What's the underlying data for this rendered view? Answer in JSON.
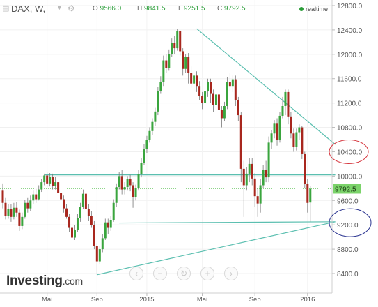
{
  "header": {
    "symbol": "DAX, W,",
    "open_label": "O",
    "open": "9566.0",
    "high_label": "H",
    "high": "9841.5",
    "low_label": "L",
    "low": "9251.5",
    "close_label": "C",
    "close": "9792.5",
    "status": "realtime",
    "icons": [
      "chart-type-icon",
      "interval-dropdown-icon",
      "settings-gear-icon",
      "status-dot-icon"
    ]
  },
  "controls": [
    {
      "name": "scroll-left-button",
      "glyph": "‹"
    },
    {
      "name": "zoom-out-button",
      "glyph": "−"
    },
    {
      "name": "reset-button",
      "glyph": "↻"
    },
    {
      "name": "zoom-in-button",
      "glyph": "+"
    },
    {
      "name": "scroll-right-button",
      "glyph": "›"
    }
  ],
  "logo": {
    "brand": "Investing",
    "suffix": ".com"
  },
  "colors": {
    "up": "#3aa53e",
    "down": "#a8271e",
    "trendline": "#5bbfb0",
    "axis_text": "#555555",
    "price_badge": "#7bd36a"
  },
  "chart_data": {
    "type": "candlestick",
    "title": "DAX, W,",
    "x_ticks": [
      "Mai",
      "Sep",
      "2015",
      "Mai",
      "Sep",
      "2016"
    ],
    "y_ticks": [
      8400,
      8800,
      9200,
      9600,
      10000,
      10400,
      10800,
      11200,
      11600,
      12000,
      12400,
      12800
    ],
    "y_tick_labels": [
      "8400.0",
      "8800.0",
      "9200.0",
      "9600.0",
      "10000.0",
      "10400.0",
      "10800.0",
      "11200.0",
      "11600.0",
      "12000.0",
      "12400.0",
      "12800.0"
    ],
    "ylim": [
      8100,
      12950
    ],
    "last_price": "9792.5",
    "last_price_value": 9792.5,
    "candles": [
      [
        9760,
        9560,
        9880,
        9470
      ],
      [
        9560,
        9350,
        9640,
        9290
      ],
      [
        9350,
        9460,
        9540,
        9300
      ],
      [
        9460,
        9330,
        9540,
        9250
      ],
      [
        9330,
        9480,
        9560,
        9290
      ],
      [
        9480,
        9400,
        9570,
        9330
      ],
      [
        9400,
        9180,
        9450,
        9100
      ],
      [
        9180,
        9330,
        9400,
        9130
      ],
      [
        9330,
        9560,
        9610,
        9300
      ],
      [
        9560,
        9470,
        9640,
        9400
      ],
      [
        9470,
        9600,
        9680,
        9420
      ],
      [
        9600,
        9700,
        9760,
        9540
      ],
      [
        9700,
        9620,
        9790,
        9560
      ],
      [
        9620,
        9780,
        9850,
        9600
      ],
      [
        9780,
        9900,
        9950,
        9740
      ],
      [
        9900,
        10010,
        10040,
        9850
      ],
      [
        10010,
        9880,
        10060,
        9820
      ],
      [
        9880,
        9990,
        10050,
        9830
      ],
      [
        9990,
        9840,
        10040,
        9780
      ],
      [
        9840,
        9900,
        9990,
        9780
      ],
      [
        9900,
        9720,
        9960,
        9650
      ],
      [
        9720,
        9620,
        9790,
        9560
      ],
      [
        9620,
        9470,
        9680,
        9400
      ],
      [
        9470,
        9330,
        9540,
        9300
      ],
      [
        9330,
        9150,
        9380,
        9080
      ],
      [
        9150,
        8990,
        9200,
        8900
      ],
      [
        8990,
        9120,
        9200,
        8950
      ],
      [
        9120,
        9310,
        9380,
        9080
      ],
      [
        9310,
        9500,
        9560,
        9250
      ],
      [
        9500,
        9710,
        9780,
        9460
      ],
      [
        9710,
        9460,
        9760,
        9400
      ],
      [
        9460,
        9350,
        9540,
        9260
      ],
      [
        9350,
        9200,
        9420,
        9150
      ],
      [
        9200,
        8850,
        9260,
        8800
      ],
      [
        8850,
        8600,
        8900,
        8380
      ],
      [
        8600,
        8800,
        8850,
        8550
      ],
      [
        8800,
        8980,
        9050,
        8750
      ],
      [
        8980,
        9240,
        9300,
        8950
      ],
      [
        9240,
        9150,
        9300,
        9050
      ],
      [
        9150,
        9280,
        9350,
        9100
      ],
      [
        9280,
        9560,
        9620,
        9250
      ],
      [
        9560,
        9820,
        9880,
        9500
      ],
      [
        9820,
        10000,
        10070,
        9780
      ],
      [
        10000,
        9780,
        10100,
        9700
      ],
      [
        9780,
        9820,
        9900,
        9700
      ],
      [
        9820,
        9950,
        10000,
        9760
      ],
      [
        9950,
        9850,
        10020,
        9750
      ],
      [
        9850,
        9650,
        9900,
        9480
      ],
      [
        9650,
        9800,
        9860,
        9600
      ],
      [
        9800,
        10030,
        10100,
        9760
      ],
      [
        10030,
        10220,
        10300,
        9980
      ],
      [
        10220,
        10450,
        10520,
        10180
      ],
      [
        10450,
        10600,
        10660,
        10380
      ],
      [
        10600,
        10740,
        10800,
        10550
      ],
      [
        10740,
        10890,
        10950,
        10680
      ],
      [
        10890,
        11060,
        11120,
        10820
      ],
      [
        11060,
        11400,
        11460,
        11000
      ],
      [
        11400,
        11550,
        11640,
        11350
      ],
      [
        11550,
        11900,
        11980,
        11480
      ],
      [
        11900,
        11780,
        12000,
        11700
      ],
      [
        11780,
        12000,
        12080,
        11730
      ],
      [
        12000,
        12190,
        12260,
        11960
      ],
      [
        12190,
        12100,
        12300,
        12000
      ],
      [
        12100,
        12380,
        12420,
        12060
      ],
      [
        12380,
        12050,
        12390,
        11980
      ],
      [
        12050,
        11760,
        12100,
        11650
      ],
      [
        11760,
        11960,
        12000,
        11700
      ],
      [
        11960,
        11700,
        12020,
        11520
      ],
      [
        11700,
        11520,
        11800,
        11450
      ],
      [
        11520,
        11650,
        11700,
        11400
      ],
      [
        11650,
        11480,
        11720,
        11380
      ],
      [
        11480,
        11320,
        11560,
        11250
      ],
      [
        11320,
        11200,
        11380,
        11100
      ],
      [
        11200,
        11390,
        11460,
        11150
      ],
      [
        11390,
        11540,
        11600,
        11300
      ],
      [
        11540,
        11350,
        11600,
        11200
      ],
      [
        11350,
        11170,
        11420,
        11050
      ],
      [
        11170,
        11340,
        11400,
        11100
      ],
      [
        11340,
        11090,
        11380,
        10980
      ],
      [
        11090,
        10950,
        11150,
        10800
      ],
      [
        10950,
        11150,
        11220,
        10900
      ],
      [
        11150,
        11550,
        11620,
        11100
      ],
      [
        11550,
        11480,
        11700,
        11400
      ],
      [
        11480,
        11590,
        11650,
        11380
      ],
      [
        11590,
        11250,
        11650,
        11150
      ],
      [
        11250,
        11000,
        11300,
        10900
      ],
      [
        11000,
        10120,
        11050,
        9900
      ],
      [
        10120,
        9850,
        10250,
        9330
      ],
      [
        9850,
        10040,
        10150,
        9760
      ],
      [
        10040,
        10200,
        10300,
        9900
      ],
      [
        10200,
        9960,
        10300,
        9850
      ],
      [
        9960,
        9670,
        10050,
        9500
      ],
      [
        9670,
        9550,
        9800,
        9330
      ],
      [
        9550,
        9850,
        9950,
        9400
      ],
      [
        9850,
        10100,
        10180,
        9800
      ],
      [
        10100,
        9980,
        10250,
        9900
      ],
      [
        9980,
        10550,
        10650,
        9900
      ],
      [
        10550,
        10700,
        10760,
        10450
      ],
      [
        10700,
        10860,
        10920,
        10620
      ],
      [
        10860,
        10600,
        10950,
        10500
      ],
      [
        10600,
        10990,
        11050,
        10550
      ],
      [
        10990,
        11150,
        11300,
        10950
      ],
      [
        11150,
        11380,
        11420,
        11000
      ],
      [
        11380,
        10980,
        11420,
        10850
      ],
      [
        10980,
        10700,
        11050,
        10620
      ],
      [
        10700,
        10480,
        10780,
        10400
      ],
      [
        10480,
        10720,
        10780,
        10420
      ],
      [
        10720,
        10800,
        10850,
        10600
      ],
      [
        10800,
        10360,
        10820,
        10280
      ],
      [
        10360,
        9870,
        10400,
        9800
      ],
      [
        9870,
        9560,
        9950,
        9400
      ],
      [
        9566,
        9792.5,
        9841.5,
        9251.5
      ]
    ],
    "lines": [
      {
        "name": "upper-resistance-trendline",
        "x0": 70,
        "y0": 12420,
        "x1": 120,
        "y1": 10520
      },
      {
        "name": "lower-support-trendline",
        "x0": 34,
        "y0": 8380,
        "x1": 120,
        "y1": 9250
      },
      {
        "name": "horizontal-resistance-line",
        "x0": 15,
        "y0": 10020,
        "x1": 120,
        "y1": 10020
      },
      {
        "name": "horizontal-support-line",
        "x0": 42,
        "y0": 9230,
        "x1": 120,
        "y1": 9250
      }
    ],
    "ellipses": [
      {
        "name": "annotation-ellipse-red",
        "cx": 10400,
        "color": "#d5333b"
      },
      {
        "name": "annotation-ellipse-blue",
        "cx": 9200,
        "color": "#28328f"
      }
    ]
  }
}
